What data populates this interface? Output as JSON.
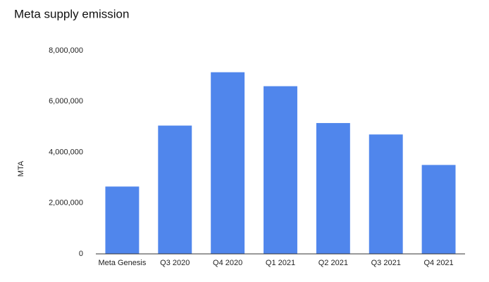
{
  "chart_data": {
    "type": "bar",
    "title": "Meta supply emission",
    "y_label": "MTA",
    "categories": [
      "Meta Genesis",
      "Q3 2020",
      "Q4 2020",
      "Q1 2021",
      "Q2 2021",
      "Q3 2021",
      "Q4 2021"
    ],
    "values": [
      2650000,
      5050000,
      7150000,
      6600000,
      5150000,
      4700000,
      3500000
    ],
    "color": "#5086ec",
    "ylim": [
      0,
      8000000
    ],
    "yticks": [
      0,
      {
        "value": 2000000,
        "label": "2,000,000"
      },
      {
        "value": 4000000,
        "label": "4,000,000"
      },
      {
        "value": 6000000,
        "label": "6,000,000"
      },
      {
        "value": 8000000,
        "label": "8,000,000"
      }
    ],
    "grid": false
  }
}
